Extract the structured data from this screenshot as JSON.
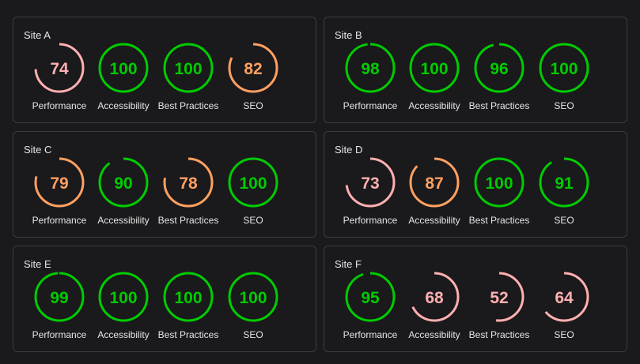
{
  "colors": {
    "pass": "#00cc00",
    "average": "#ffa060",
    "fail": "#ffb0b0"
  },
  "sites": [
    {
      "name": "Site A",
      "metrics": [
        {
          "label": "Performance",
          "score": 74,
          "status": "fail"
        },
        {
          "label": "Accessibility",
          "score": 100,
          "status": "pass"
        },
        {
          "label": "Best Practices",
          "score": 100,
          "status": "pass"
        },
        {
          "label": "SEO",
          "score": 82,
          "status": "average"
        }
      ]
    },
    {
      "name": "Site B",
      "metrics": [
        {
          "label": "Performance",
          "score": 98,
          "status": "pass"
        },
        {
          "label": "Accessibility",
          "score": 100,
          "status": "pass"
        },
        {
          "label": "Best Practices",
          "score": 96,
          "status": "pass"
        },
        {
          "label": "SEO",
          "score": 100,
          "status": "pass"
        }
      ]
    },
    {
      "name": "Site C",
      "metrics": [
        {
          "label": "Performance",
          "score": 79,
          "status": "average"
        },
        {
          "label": "Accessibility",
          "score": 90,
          "status": "pass"
        },
        {
          "label": "Best Practices",
          "score": 78,
          "status": "average"
        },
        {
          "label": "SEO",
          "score": 100,
          "status": "pass"
        }
      ]
    },
    {
      "name": "Site D",
      "metrics": [
        {
          "label": "Performance",
          "score": 73,
          "status": "fail"
        },
        {
          "label": "Accessibility",
          "score": 87,
          "status": "average"
        },
        {
          "label": "Best Practices",
          "score": 100,
          "status": "pass"
        },
        {
          "label": "SEO",
          "score": 91,
          "status": "pass"
        }
      ]
    },
    {
      "name": "Site E",
      "metrics": [
        {
          "label": "Performance",
          "score": 99,
          "status": "pass"
        },
        {
          "label": "Accessibility",
          "score": 100,
          "status": "pass"
        },
        {
          "label": "Best Practices",
          "score": 100,
          "status": "pass"
        },
        {
          "label": "SEO",
          "score": 100,
          "status": "pass"
        }
      ]
    },
    {
      "name": "Site F",
      "metrics": [
        {
          "label": "Performance",
          "score": 95,
          "status": "pass"
        },
        {
          "label": "Accessibility",
          "score": 68,
          "status": "fail"
        },
        {
          "label": "Best Practices",
          "score": 52,
          "status": "fail"
        },
        {
          "label": "SEO",
          "score": 64,
          "status": "fail"
        }
      ]
    }
  ]
}
